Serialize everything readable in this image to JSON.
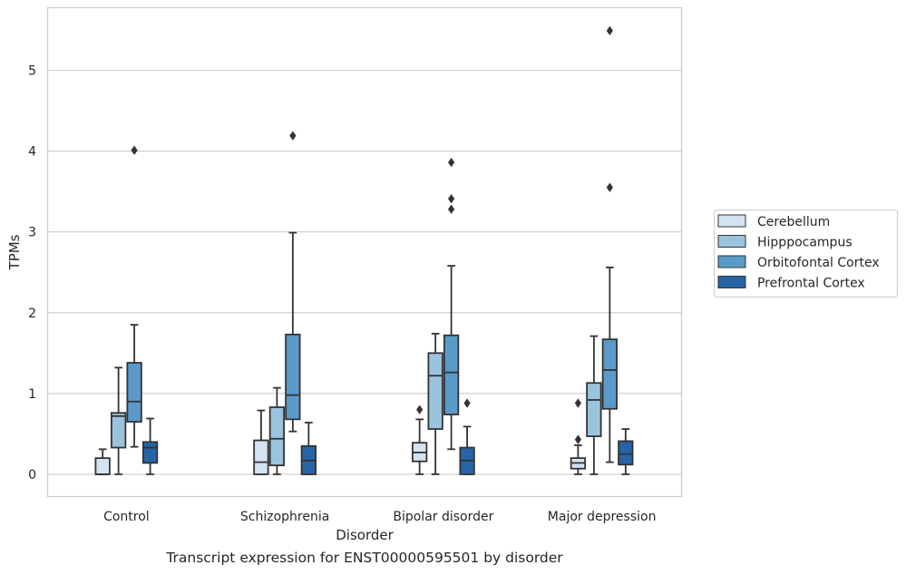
{
  "chart_data": {
    "type": "box",
    "title": "",
    "xlabel": "Disorder",
    "ylabel": "TPMs",
    "caption": "Transcript expression for ENST00000595501 by disorder",
    "categories": [
      "Control",
      "Schizophrenia",
      "Bipolar disorder",
      "Major depression"
    ],
    "ylim": [
      -0.27,
      5.78
    ],
    "yticks": [
      0,
      1,
      2,
      3,
      4,
      5
    ],
    "grid": "horizontal",
    "legend_position": "right",
    "series": [
      {
        "name": "Cerebellum",
        "color": "#d4e3f2",
        "boxes": [
          {
            "whisker_low": 0.0,
            "q1": 0.0,
            "median": 0.0,
            "q3": 0.2,
            "whisker_high": 0.31,
            "outliers": []
          },
          {
            "whisker_low": 0.0,
            "q1": 0.0,
            "median": 0.15,
            "q3": 0.42,
            "whisker_high": 0.79,
            "outliers": []
          },
          {
            "whisker_low": 0.0,
            "q1": 0.16,
            "median": 0.27,
            "q3": 0.39,
            "whisker_high": 0.68,
            "outliers": [
              0.8
            ]
          },
          {
            "whisker_low": 0.0,
            "q1": 0.07,
            "median": 0.14,
            "q3": 0.2,
            "whisker_high": 0.36,
            "outliers": [
              0.43,
              0.88
            ]
          }
        ]
      },
      {
        "name": "Hipppocampus",
        "color": "#9ac4dd",
        "boxes": [
          {
            "whisker_low": 0.0,
            "q1": 0.33,
            "median": 0.72,
            "q3": 0.76,
            "whisker_high": 1.32,
            "outliers": []
          },
          {
            "whisker_low": 0.0,
            "q1": 0.11,
            "median": 0.44,
            "q3": 0.83,
            "whisker_high": 1.07,
            "outliers": []
          },
          {
            "whisker_low": 0.0,
            "q1": 0.56,
            "median": 1.22,
            "q3": 1.5,
            "whisker_high": 1.74,
            "outliers": []
          },
          {
            "whisker_low": 0.0,
            "q1": 0.47,
            "median": 0.92,
            "q3": 1.13,
            "whisker_high": 1.71,
            "outliers": []
          }
        ]
      },
      {
        "name": "Orbitofontal Cortex",
        "color": "#5a9ac9",
        "boxes": [
          {
            "whisker_low": 0.34,
            "q1": 0.65,
            "median": 0.9,
            "q3": 1.38,
            "whisker_high": 1.85,
            "outliers": [
              4.01
            ]
          },
          {
            "whisker_low": 0.53,
            "q1": 0.68,
            "median": 0.98,
            "q3": 1.73,
            "whisker_high": 2.99,
            "outliers": [
              4.19
            ]
          },
          {
            "whisker_low": 0.31,
            "q1": 0.74,
            "median": 1.26,
            "q3": 1.72,
            "whisker_high": 2.58,
            "outliers": [
              3.28,
              3.41,
              3.86
            ]
          },
          {
            "whisker_low": 0.15,
            "q1": 0.81,
            "median": 1.29,
            "q3": 1.67,
            "whisker_high": 2.56,
            "outliers": [
              3.55,
              5.49
            ]
          }
        ]
      },
      {
        "name": "Prefrontal Cortex",
        "color": "#2764a6",
        "boxes": [
          {
            "whisker_low": 0.0,
            "q1": 0.14,
            "median": 0.33,
            "q3": 0.4,
            "whisker_high": 0.69,
            "outliers": []
          },
          {
            "whisker_low": 0.0,
            "q1": 0.0,
            "median": 0.17,
            "q3": 0.35,
            "whisker_high": 0.64,
            "outliers": []
          },
          {
            "whisker_low": 0.0,
            "q1": 0.0,
            "median": 0.17,
            "q3": 0.33,
            "whisker_high": 0.59,
            "outliers": [
              0.88
            ]
          },
          {
            "whisker_low": 0.0,
            "q1": 0.12,
            "median": 0.25,
            "q3": 0.41,
            "whisker_high": 0.56,
            "outliers": []
          }
        ]
      }
    ]
  }
}
